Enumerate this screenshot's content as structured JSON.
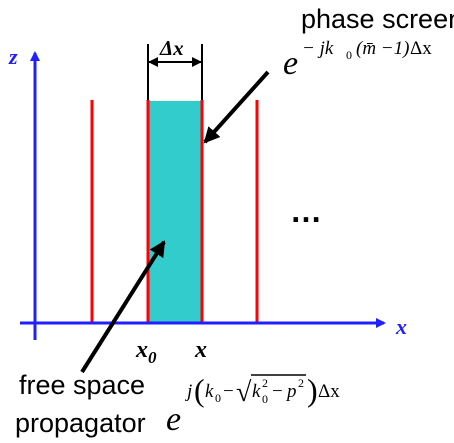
{
  "labels": {
    "phase_screen": "phase screen",
    "free_space": "free space",
    "propagator": "propagator",
    "ellipsis": "…",
    "delta_x": "Δx",
    "axis_z": "z",
    "axis_x": "x",
    "x0_base": "x",
    "x0_sub": "0",
    "x_label": "x"
  },
  "equations": {
    "phase_screen": {
      "base": "e",
      "exp_prefix": "− jk",
      "exp_k_sub": "0",
      "exp_m_group": "(m̄ −1)",
      "exp_suffix": "Δx"
    },
    "propagator": {
      "base": "e",
      "exp_j": "j",
      "paren_open": "(",
      "k0_base": "k",
      "k0_sub": "0",
      "minus": "−",
      "sqrt_sign": "√",
      "k0sq_base": "k",
      "k0sq_sub": "0",
      "k0sq_sup": "2",
      "minus2": "−",
      "p_base": "p",
      "p_sup": "2",
      "paren_close": ")",
      "exp_suffix": "Δx"
    }
  },
  "colors": {
    "axis": "#1f1fff",
    "screen": "#ff0000",
    "slab": "#33cccc",
    "arrow": "#000000",
    "text": "#000000"
  }
}
